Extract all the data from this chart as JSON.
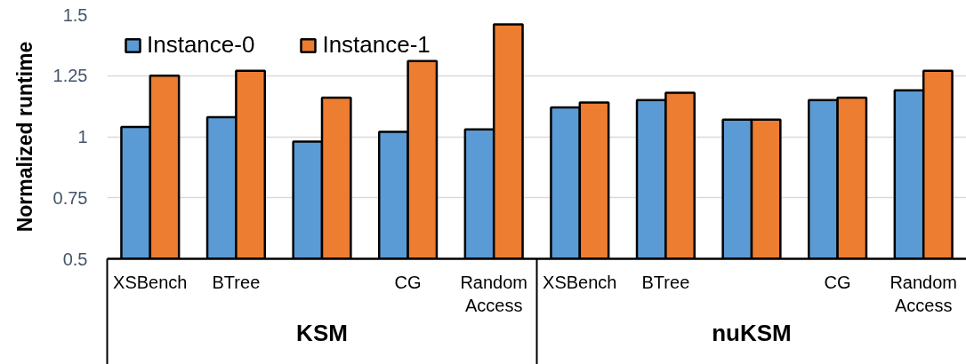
{
  "chart_data": {
    "type": "bar",
    "ylabel": "Normalized runtime",
    "categories": [
      "XSBench",
      "BTree",
      null,
      "CG",
      "Random Access",
      "XSBench",
      "BTree",
      null,
      "CG",
      "Random Access"
    ],
    "series": [
      {
        "name": "Instance-0",
        "color": "#5b9bd5",
        "values": [
          1.04,
          1.08,
          0.98,
          1.02,
          1.03,
          1.12,
          1.15,
          1.07,
          1.15,
          1.19
        ]
      },
      {
        "name": "Instance-1",
        "color": "#ed7d31",
        "values": [
          1.25,
          1.27,
          1.16,
          1.31,
          1.46,
          1.14,
          1.18,
          1.07,
          1.16,
          1.27
        ]
      }
    ],
    "ylim": [
      0.5,
      1.5
    ],
    "yticks": [
      0.5,
      0.75,
      1,
      1.25,
      1.5
    ],
    "grid": "y",
    "legend": "top left",
    "annotations": [
      "KSM",
      "nuKSM"
    ]
  }
}
